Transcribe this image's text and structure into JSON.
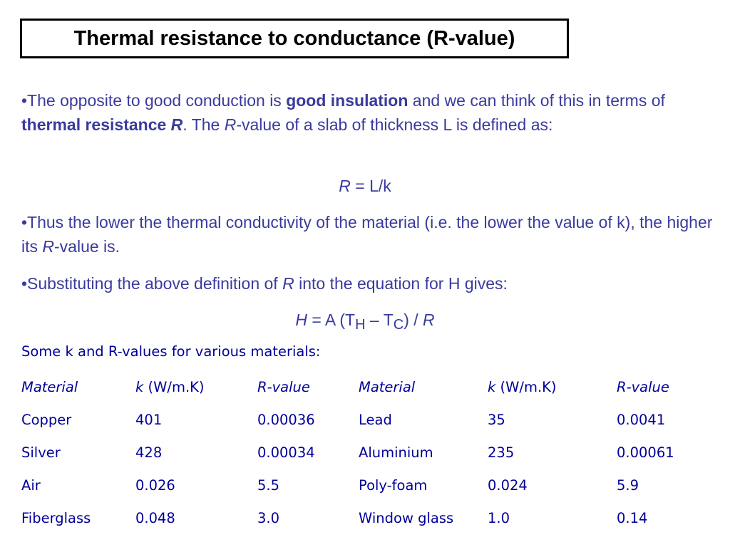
{
  "title": "Thermal resistance to conductance (R-value)",
  "p1": {
    "a": "•The opposite to good conduction is ",
    "b": "good insulation",
    "c": " and we can think of this in terms of ",
    "d": "thermal resistance ",
    "e": "R",
    "f": ". The ",
    "g": "R",
    "h": "-value of a slab of thickness L is defined as:"
  },
  "eq1": {
    "r": "R",
    "rest": " = L/k"
  },
  "p2": {
    "a": "•Thus the lower the thermal conductivity of the material (i.e. the lower  the value of k), the higher its ",
    "b": "R",
    "c": "-value is."
  },
  "p3": {
    "a": "•Substituting the above definition of ",
    "b": "R",
    "c": " into the equation for H gives:"
  },
  "eq2": {
    "h": "H",
    "a": " = A (T",
    "sh": "H",
    "m": " – T",
    "sc": "C",
    "d": ") / ",
    "r": "R"
  },
  "caption": "Some k and R-values for various materials:",
  "table": {
    "headers": [
      {
        "i": "Material",
        "n": ""
      },
      {
        "i": "k",
        "n": " (W/m.K)"
      },
      {
        "i": "R",
        "n": "-value"
      },
      {
        "i": "Material",
        "n": ""
      },
      {
        "i": "k",
        "n": " (W/m.K)"
      },
      {
        "i": "R",
        "n": "-value"
      }
    ],
    "rows": [
      [
        "Copper",
        "401",
        "0.00036",
        "Lead",
        "35",
        "0.0041"
      ],
      [
        "Silver",
        "428",
        "0.00034",
        "Aluminium",
        "235",
        "0.00061"
      ],
      [
        "Air",
        "0.026",
        "5.5",
        "Poly-foam",
        "0.024",
        "5.9"
      ],
      [
        "Fiberglass",
        "0.048",
        "3.0",
        "Window glass",
        "1.0",
        "0.14"
      ]
    ]
  }
}
